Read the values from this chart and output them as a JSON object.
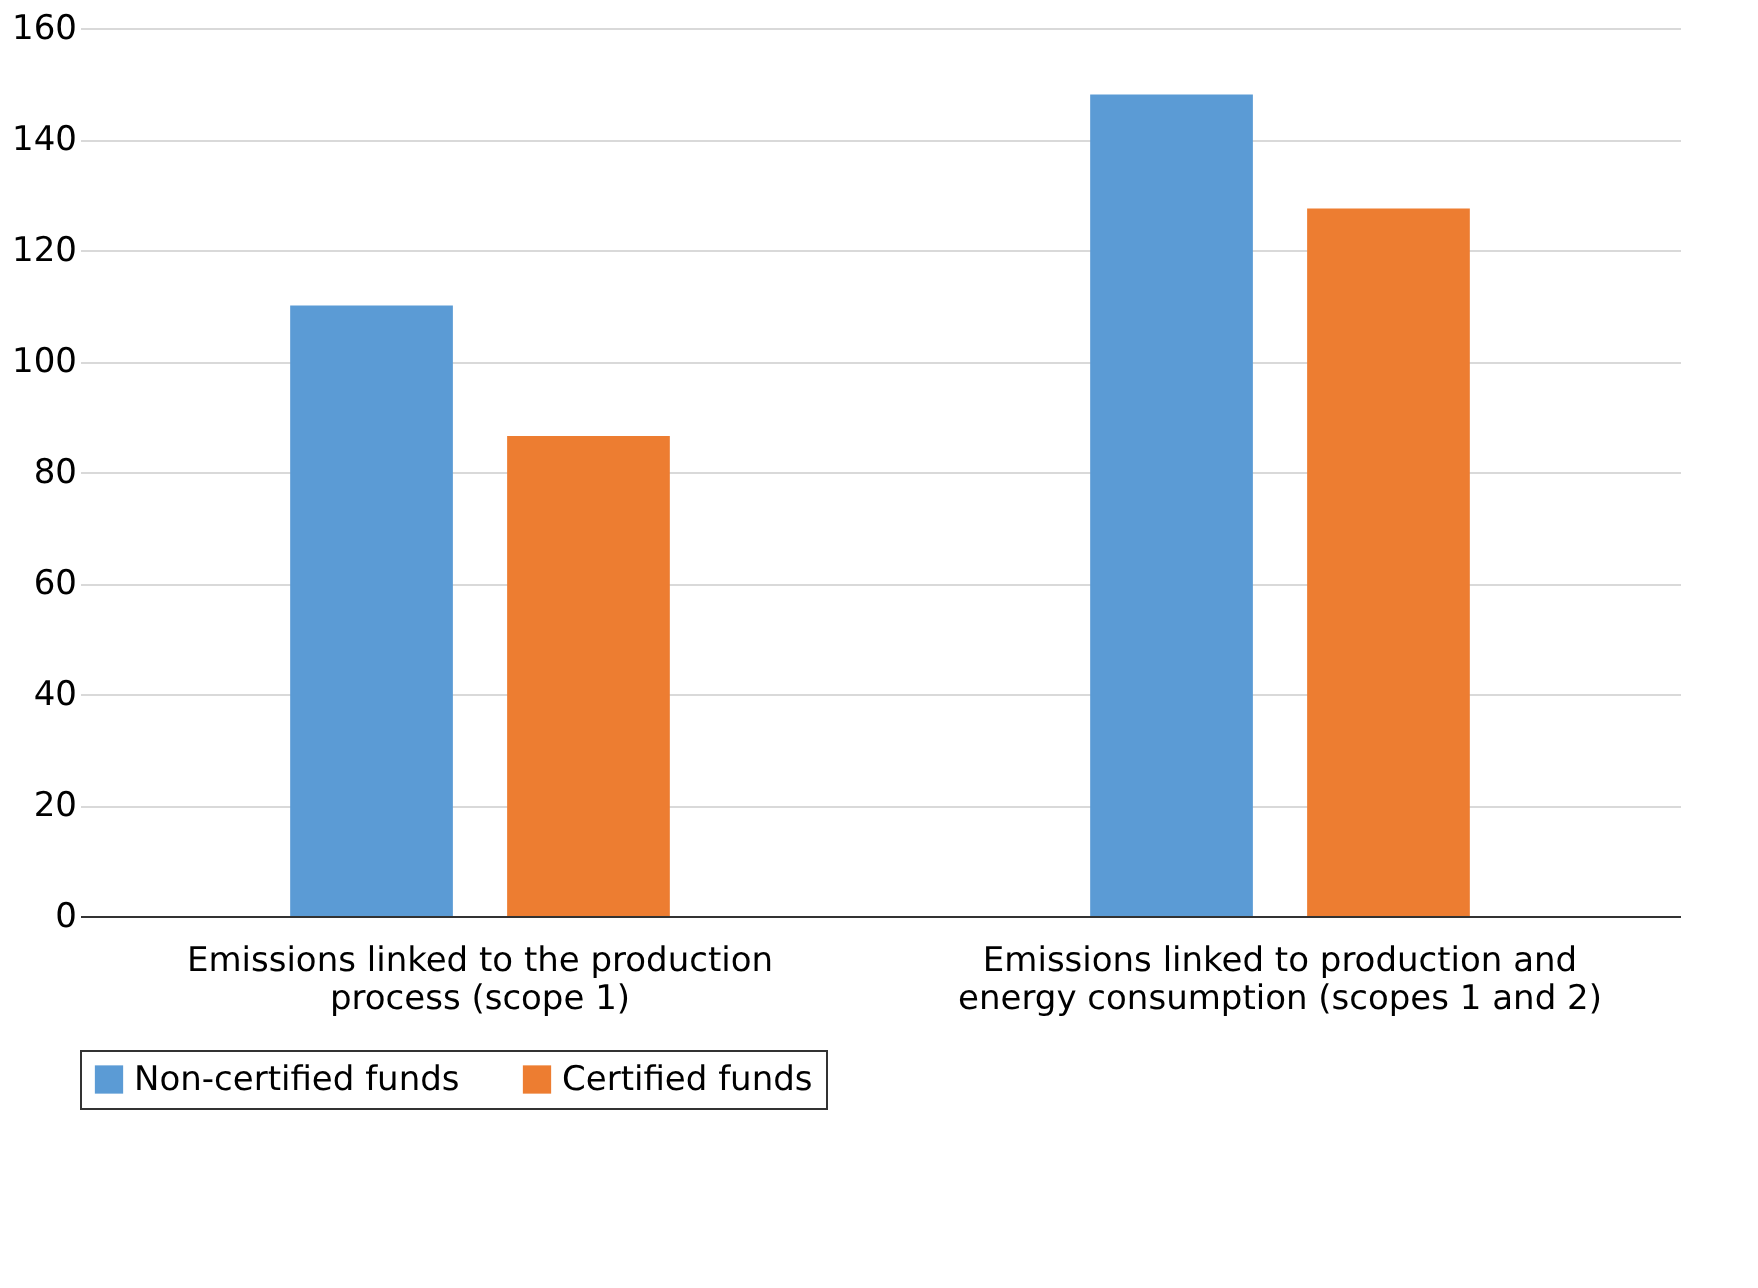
{
  "chart_data": {
    "type": "bar",
    "categories": [
      "Emissions linked to the production process (scope 1)",
      "Emissions linked to production and energy consumption (scopes 1 and 2)"
    ],
    "series": [
      {
        "name": "Non-certified funds",
        "color": "#5b9bd5",
        "values": [
          110,
          148
        ]
      },
      {
        "name": "Certified funds",
        "color": "#ed7d31",
        "values": [
          86.5,
          127.5
        ]
      }
    ],
    "ylim": [
      0,
      160
    ],
    "yticks": [
      0,
      20,
      40,
      60,
      80,
      100,
      120,
      140,
      160
    ],
    "grid": "y",
    "legend": "bottom"
  }
}
